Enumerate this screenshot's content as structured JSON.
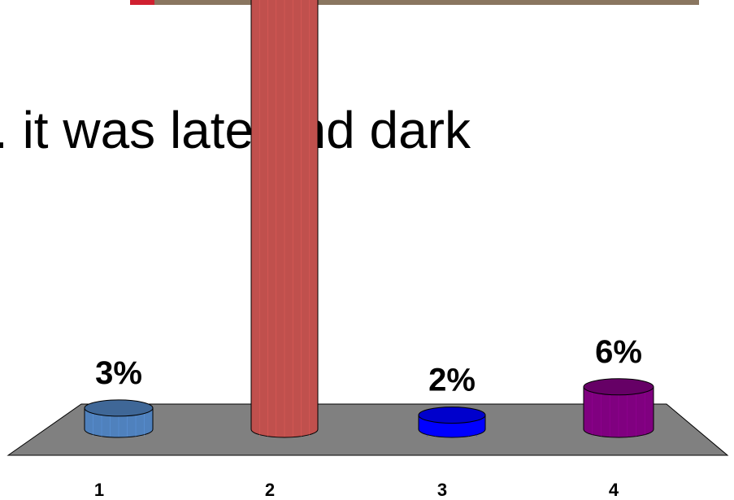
{
  "chart_data": {
    "type": "cylinder",
    "title": ". it was late and dark",
    "categories": [
      "1",
      "2",
      "3",
      "4"
    ],
    "values": [
      3,
      89,
      2,
      6
    ],
    "value_labels": [
      "3%",
      null,
      "2%",
      "6%"
    ],
    "colors": [
      "#4f81bd",
      "#c0504d",
      "#0000ff",
      "#800080"
    ]
  }
}
